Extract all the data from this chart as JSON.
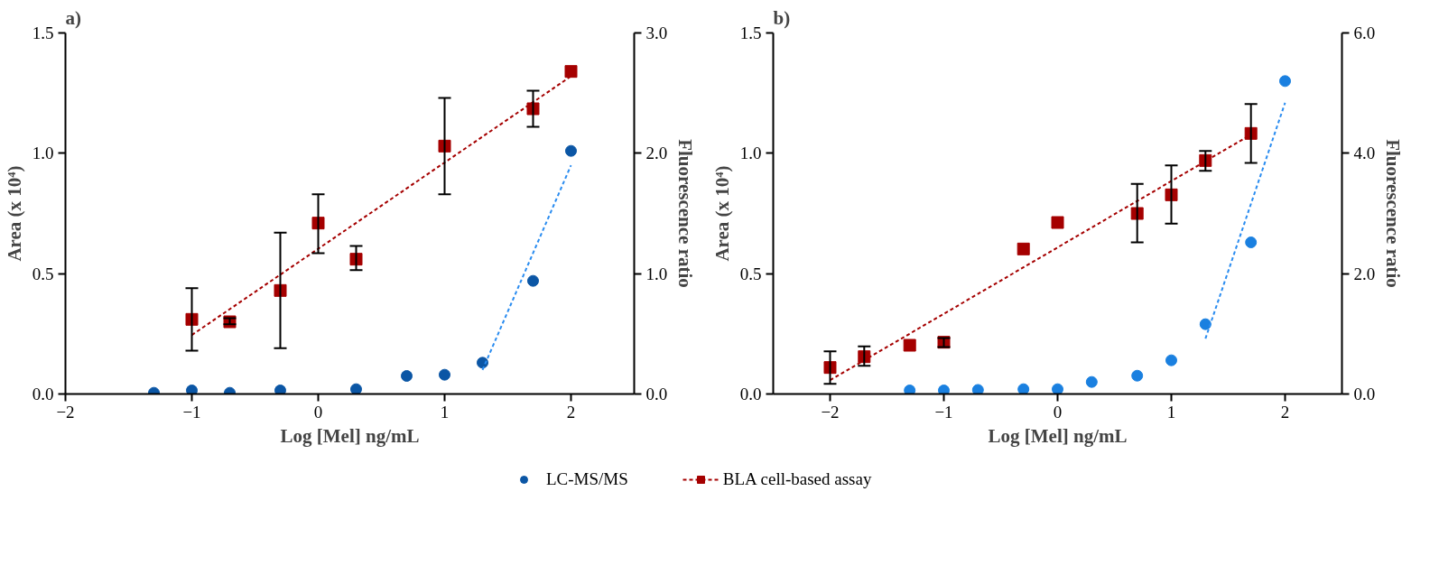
{
  "chart_data": [
    {
      "type": "scatter",
      "title": "a)",
      "xlabel": "Log [Mel] ng/mL",
      "ylabel": "Area (x 10⁴)",
      "y2label": "Fluorescence ratio",
      "grid": false,
      "legend": "bottom",
      "xlim": [
        -2,
        2.5
      ],
      "xticks": [
        -2,
        -1,
        0,
        1,
        2
      ],
      "ylim": [
        0,
        1.5
      ],
      "yticks": [
        {
          "value": 0,
          "label": "0.0"
        },
        {
          "value": 0.5,
          "label": "0.5"
        },
        {
          "value": 1,
          "label": "1.0"
        },
        {
          "value": 1.5,
          "label": "1.5"
        }
      ],
      "y2lim": [
        0,
        3
      ],
      "y2ticks": [
        {
          "value": 0,
          "label": "0.0"
        },
        {
          "value": 1,
          "label": "1.0"
        },
        {
          "value": 2,
          "label": "2.0"
        },
        {
          "value": 3,
          "label": "3.0"
        }
      ],
      "series": [
        {
          "name": "LC-MS/MS",
          "marker": "circle",
          "color": "#0b56a5",
          "x": [
            -1.3,
            -1,
            -0.7,
            -0.3,
            0.3,
            0.7,
            1,
            1.3,
            1.7,
            2
          ],
          "values": [
            0.005,
            0.015,
            0.005,
            0.015,
            0.02,
            0.075,
            0.08,
            0.13,
            0.47,
            1.01
          ]
        },
        {
          "type": "line",
          "line_style": "dashed",
          "marker": "none",
          "color": "#2a8cf0",
          "x": [
            1.3,
            2
          ],
          "values": [
            0.1,
            0.95
          ]
        },
        {
          "name": "BLA cell-based assay",
          "axis": "y2",
          "marker": "square",
          "color": "#a50000",
          "x": [
            -1,
            -0.7,
            -0.3,
            0,
            0.3,
            1,
            1.7,
            2
          ],
          "values": [
            0.62,
            0.6,
            0.86,
            1.42,
            1.12,
            2.06,
            2.37,
            2.68
          ],
          "errors": [
            [
              0.36,
              0.88
            ],
            [
              0.58,
              0.63
            ],
            [
              0.38,
              1.34
            ],
            [
              1.17,
              1.66
            ],
            [
              1.03,
              1.23
            ],
            [
              1.66,
              2.46
            ],
            [
              2.22,
              2.52
            ],
            null
          ]
        },
        {
          "type": "line",
          "axis": "y2",
          "line_style": "dashed",
          "marker": "none",
          "color": "#a50000",
          "x": [
            -1,
            2
          ],
          "values": [
            0.49,
            2.64
          ]
        }
      ]
    },
    {
      "type": "scatter",
      "title": "b)",
      "xlabel": "Log [Mel] ng/mL",
      "ylabel": "Area (x 10⁴)",
      "y2label": "Fluorescence ratio",
      "grid": false,
      "xlim": [
        -2.5,
        2.5
      ],
      "xticks": [
        -2,
        -1,
        0,
        1,
        2
      ],
      "ylim": [
        0,
        1.5
      ],
      "yticks": [
        {
          "value": 0,
          "label": "0.0"
        },
        {
          "value": 0.5,
          "label": "0.5"
        },
        {
          "value": 1,
          "label": "1.0"
        },
        {
          "value": 1.5,
          "label": "1.5"
        }
      ],
      "y2lim": [
        0,
        6
      ],
      "y2ticks": [
        {
          "value": 0,
          "label": "0.0"
        },
        {
          "value": 2,
          "label": "2.0"
        },
        {
          "value": 4,
          "label": "4.0"
        },
        {
          "value": 6,
          "label": "6.0"
        }
      ],
      "series": [
        {
          "marker": "circle",
          "color": "#1a80e0",
          "x": [
            -1.3,
            -1,
            -0.7,
            -0.3,
            0,
            0.3,
            0.7,
            1,
            1.3,
            1.7,
            2
          ],
          "values": [
            0.015,
            0.015,
            0.017,
            0.02,
            0.02,
            0.05,
            0.076,
            0.14,
            0.29,
            0.63,
            1.3
          ]
        },
        {
          "type": "line",
          "line_style": "dashed",
          "marker": "none",
          "color": "#2a8cf0",
          "x": [
            1.3,
            2
          ],
          "values": [
            0.23,
            1.21
          ]
        },
        {
          "axis": "y2",
          "marker": "square",
          "color": "#a50000",
          "x": [
            -2,
            -1.7,
            -1.3,
            -1,
            -0.3,
            0,
            0.7,
            1,
            1.3,
            1.7
          ],
          "values": [
            0.44,
            0.62,
            0.81,
            0.86,
            2.41,
            2.85,
            3.0,
            3.31,
            3.88,
            4.33
          ],
          "errors": [
            [
              0.17,
              0.71
            ],
            [
              0.47,
              0.79
            ],
            null,
            [
              0.78,
              0.93
            ],
            null,
            null,
            [
              2.52,
              3.49
            ],
            [
              2.83,
              3.8
            ],
            [
              3.71,
              4.04
            ],
            [
              3.84,
              4.82
            ]
          ]
        },
        {
          "type": "line",
          "axis": "y2",
          "line_style": "dashed",
          "marker": "none",
          "color": "#a50000",
          "x": [
            -2,
            1.7
          ],
          "values": [
            0.23,
            4.31
          ]
        }
      ]
    }
  ]
}
